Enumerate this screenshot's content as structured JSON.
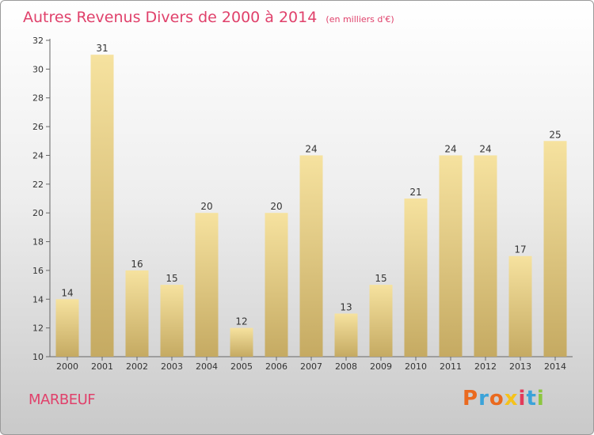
{
  "chart_data": {
    "type": "bar",
    "title": "Autres Revenus Divers de 2000 à 2014",
    "subtitle": "(en milliers d'€)",
    "categories": [
      "2000",
      "2001",
      "2002",
      "2003",
      "2004",
      "2005",
      "2006",
      "2007",
      "2008",
      "2009",
      "2010",
      "2011",
      "2012",
      "2013",
      "2014"
    ],
    "values": [
      14,
      31,
      16,
      15,
      20,
      12,
      20,
      24,
      13,
      15,
      21,
      24,
      24,
      17,
      25
    ],
    "ylim": [
      10,
      32
    ],
    "yticks": [
      10,
      12,
      14,
      16,
      18,
      20,
      22,
      24,
      26,
      28,
      30,
      32
    ],
    "grid": false,
    "legend": "none",
    "bar_colors": [
      "#c5aa62",
      "#f6e29f"
    ],
    "axis_color": "#666666"
  },
  "footer": {
    "commune": "MARBEUF",
    "logo": "Proxiti",
    "logo_colors": [
      "#ea6a1f",
      "#3ba3d9",
      "#ea6a1f",
      "#f5c21b",
      "#e23a5a",
      "#3ba3d9",
      "#8cc63f"
    ]
  },
  "colors": {
    "title": "#e0416b",
    "background_top": "#ffffff",
    "background_bottom": "#c9c9c9"
  }
}
